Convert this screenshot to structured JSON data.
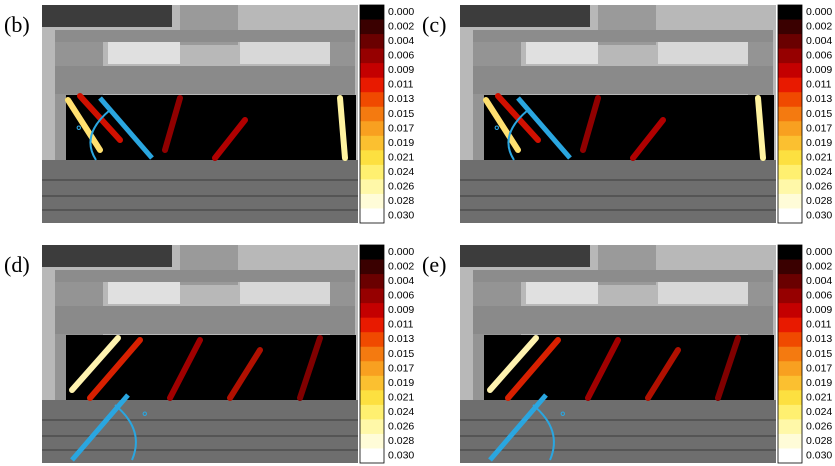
{
  "panels": [
    {
      "label": "(b)",
      "angle_label": "°"
    },
    {
      "label": "(c)",
      "angle_label": "°"
    },
    {
      "label": "(d)",
      "angle_label": "°"
    },
    {
      "label": "(e)",
      "angle_label": "°"
    }
  ],
  "colorbar": {
    "ticks": [
      "0.000",
      "0.002",
      "0.004",
      "0.006",
      "0.009",
      "0.011",
      "0.013",
      "0.015",
      "0.017",
      "0.019",
      "0.021",
      "0.024",
      "0.026",
      "0.028",
      "0.030"
    ],
    "colors": [
      "#000000",
      "#3a0000",
      "#6a0000",
      "#960000",
      "#c40000",
      "#e81a00",
      "#f04a00",
      "#f47a10",
      "#f8a020",
      "#fbc030",
      "#fde040",
      "#fff070",
      "#fff8a8",
      "#fffcd8",
      "#ffffff"
    ]
  }
}
